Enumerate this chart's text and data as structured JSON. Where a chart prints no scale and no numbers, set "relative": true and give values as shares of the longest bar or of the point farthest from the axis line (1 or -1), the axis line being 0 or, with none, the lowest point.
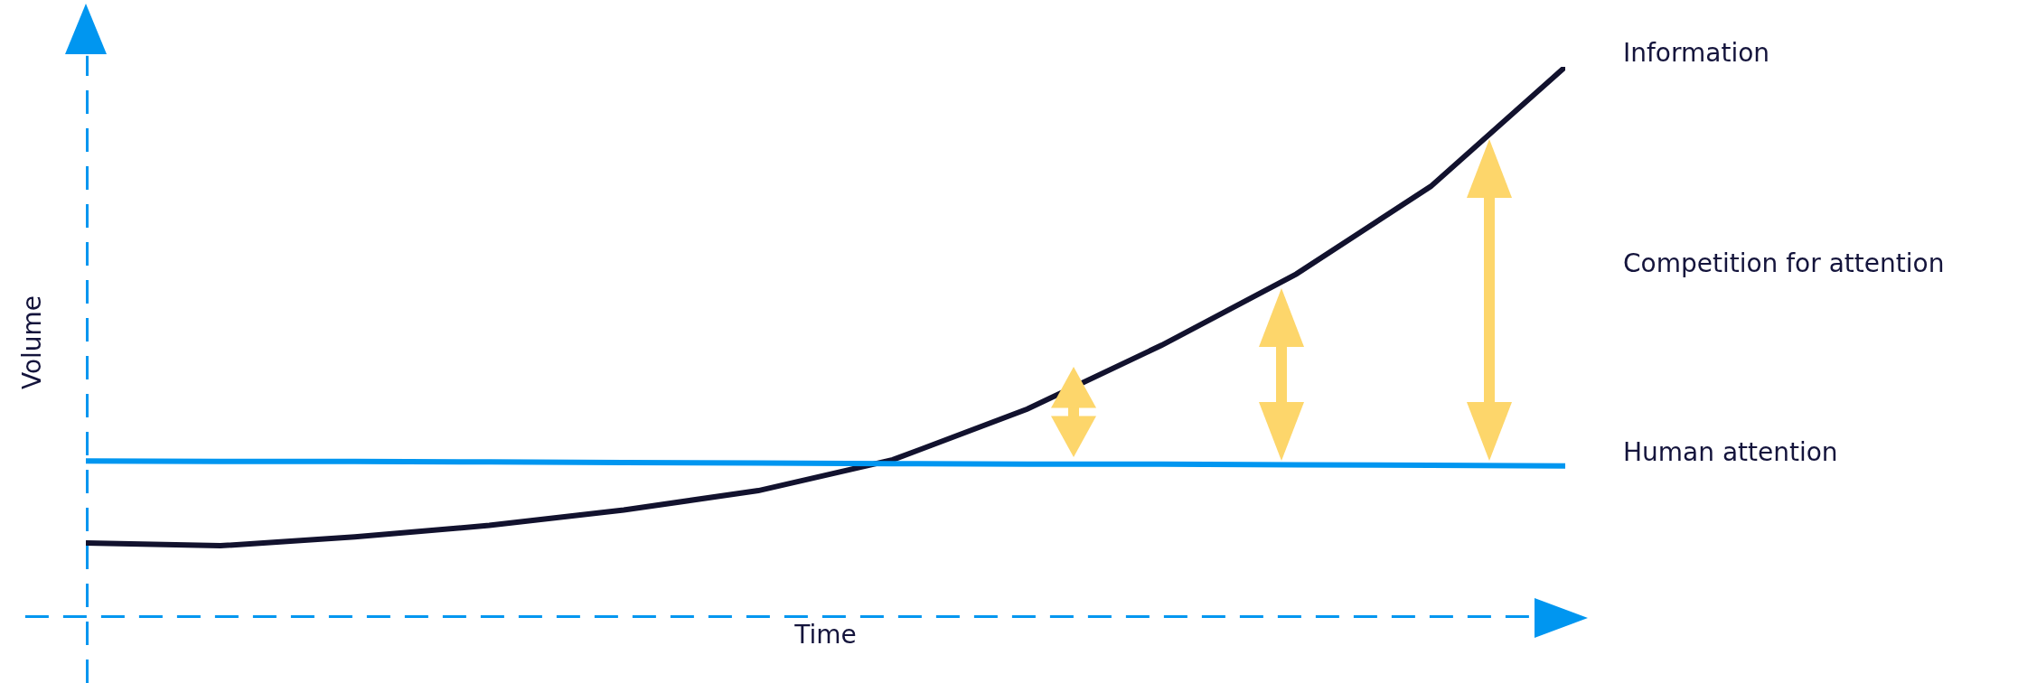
{
  "chart_data": {
    "type": "line",
    "relative": true,
    "xlabel": "Time",
    "ylabel": "Volume",
    "legend": false,
    "categories": [
      null,
      null,
      null,
      null,
      null,
      null,
      null,
      null,
      null,
      null,
      null,
      null
    ],
    "series": [
      {
        "name": "Information",
        "color": "#12122e",
        "values": [
          0.136,
          0.131,
          0.147,
          0.168,
          0.196,
          0.231,
          0.287,
          0.379,
          0.495,
          0.624,
          0.783,
          1.0
        ]
      },
      {
        "name": "Human attention",
        "color": "#0096f0",
        "values": [
          0.285,
          0.284,
          0.284,
          0.283,
          0.282,
          0.281,
          0.28,
          0.279,
          0.279,
          0.278,
          0.277,
          0.276
        ]
      }
    ],
    "annotations": [
      "Competition for attention"
    ]
  }
}
